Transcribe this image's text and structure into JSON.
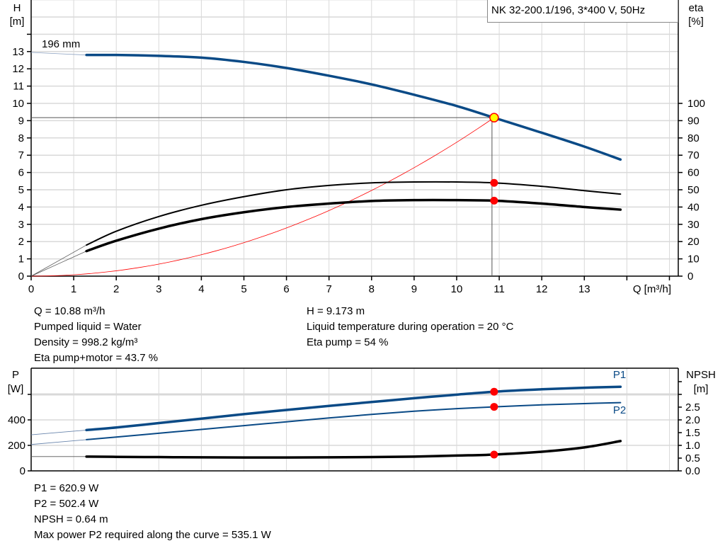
{
  "model_label": "NK 32-200.1/196, 3*400 V, 50Hz",
  "colors": {
    "head": "#0a4a86",
    "power": "#0a4a86",
    "efficiency": "#000000",
    "npsh": "#000000",
    "system_curve": "#ff0000",
    "operating_point": "#ffff00",
    "marker": "#ff0000",
    "grid": "#d9d9d9"
  },
  "chart_data": [
    {
      "type": "line",
      "title": "",
      "xlabel": "Q [m³/h]",
      "ylabel": "H\n[m]",
      "ylabel_lines": [
        "H",
        "[m]"
      ],
      "y2label_lines": [
        "eta",
        "[%]"
      ],
      "xlim": [
        0,
        15.2
      ],
      "ylim": [
        0,
        16
      ],
      "y2lim": [
        0,
        160
      ],
      "grid": true,
      "x_ticks": [
        "0",
        "1",
        "2",
        "3",
        "4",
        "5",
        "6",
        "7",
        "8",
        "9",
        "10",
        "11",
        "12",
        "13"
      ],
      "y_ticks": [
        "0",
        "1",
        "2",
        "3",
        "4",
        "5",
        "6",
        "7",
        "8",
        "9",
        "10",
        "11",
        "12",
        "13"
      ],
      "y2_ticks": [
        "0",
        "10",
        "20",
        "30",
        "40",
        "50",
        "60",
        "70",
        "80",
        "90",
        "100"
      ],
      "curve_label": "196 mm",
      "series": [
        {
          "key": "head",
          "axis": "left",
          "x": [
            1.3,
            2,
            3,
            4,
            5,
            6,
            7,
            8,
            9,
            10,
            10.88,
            12,
            13,
            13.85
          ],
          "y": [
            12.8,
            12.8,
            12.75,
            12.65,
            12.4,
            12.05,
            11.6,
            11.1,
            10.5,
            9.85,
            9.17,
            8.3,
            7.5,
            6.75
          ],
          "extension": {
            "x": [
              0,
              1.3
            ],
            "y": [
              12.95,
              12.8
            ]
          }
        },
        {
          "key": "eta_pump",
          "axis": "right",
          "x": [
            1.3,
            2,
            3,
            4,
            5,
            6,
            7,
            8,
            9,
            10,
            10.88,
            12,
            13,
            13.85
          ],
          "y": [
            18,
            26,
            34.5,
            41,
            46,
            50,
            52.5,
            54,
            54.5,
            54.5,
            54,
            52,
            49.5,
            47.5
          ],
          "extension": {
            "x": [
              0,
              1.3
            ],
            "y": [
              0,
              18
            ]
          }
        },
        {
          "key": "eta_pump_motor",
          "axis": "right",
          "x": [
            1.3,
            2,
            3,
            4,
            5,
            6,
            7,
            8,
            9,
            10,
            10.88,
            12,
            13,
            13.85
          ],
          "y": [
            14.5,
            20.5,
            27.5,
            33,
            37,
            40,
            42,
            43.5,
            44,
            44,
            43.7,
            42,
            40,
            38.5
          ],
          "extension": {
            "x": [
              0,
              1.3
            ],
            "y": [
              0,
              14.5
            ]
          }
        },
        {
          "key": "system_curve",
          "axis": "left",
          "formula": "H = 9.173*(Q/10.88)^2",
          "x_range": [
            0,
            10.88
          ]
        }
      ],
      "operating_point": {
        "Q": 10.88,
        "H": 9.173,
        "eta_pump": 54,
        "eta_pump_motor": 43.7
      }
    },
    {
      "type": "line",
      "title": "",
      "ylabel_lines": [
        "P",
        "[W]"
      ],
      "y2label_lines": [
        "NPSH",
        "[m]"
      ],
      "xlim": [
        0,
        15.2
      ],
      "ylim": [
        0,
        800
      ],
      "y2lim": [
        0,
        4.0
      ],
      "grid": true,
      "y_ticks": [
        "0",
        "200",
        "400"
      ],
      "y2_ticks": [
        "0.0",
        "0.5",
        "1.0",
        "1.5",
        "2.0",
        "2.5"
      ],
      "series": [
        {
          "key": "P1",
          "name": "P1",
          "axis": "left",
          "x": [
            1.3,
            2,
            3,
            4,
            5,
            6,
            7,
            8,
            9,
            10,
            10.88,
            12,
            13,
            13.85
          ],
          "y": [
            320,
            340,
            375,
            410,
            445,
            478,
            510,
            540,
            570,
            598,
            620.9,
            640,
            652,
            660
          ],
          "extension": {
            "x": [
              0,
              1.3
            ],
            "y": [
              283,
              320
            ]
          }
        },
        {
          "key": "P2",
          "name": "P2",
          "axis": "left",
          "x": [
            1.3,
            2,
            3,
            4,
            5,
            6,
            7,
            8,
            9,
            10,
            10.88,
            12,
            13,
            13.85
          ],
          "y": [
            245,
            265,
            295,
            325,
            355,
            385,
            415,
            443,
            468,
            488,
            502.4,
            518,
            528,
            535.1
          ],
          "extension": {
            "x": [
              0,
              1.3
            ],
            "y": [
              207,
              245
            ]
          }
        },
        {
          "key": "NPSH",
          "axis": "right",
          "x": [
            1.3,
            2,
            3,
            4,
            5,
            6,
            7,
            8,
            9,
            10,
            10.88,
            12,
            13,
            13.85
          ],
          "y": [
            0.56,
            0.55,
            0.54,
            0.53,
            0.525,
            0.525,
            0.53,
            0.54,
            0.56,
            0.6,
            0.64,
            0.75,
            0.92,
            1.17
          ],
          "extension": {
            "x": [
              0,
              1.3
            ],
            "y": [
              0.56,
              0.56
            ]
          }
        }
      ],
      "operating_point": {
        "Q": 10.88,
        "P1": 620.9,
        "P2": 502.4,
        "NPSH": 0.64
      }
    }
  ],
  "results_top": {
    "left": [
      "Q = 10.88 m³/h",
      "Pumped liquid = Water",
      "Density = 998.2 kg/m³",
      "Eta pump+motor = 43.7 %"
    ],
    "right": [
      "H = 9.173 m",
      "Liquid temperature during operation = 20 °C",
      "Eta pump = 54 %"
    ]
  },
  "results_bottom": [
    "P1 = 620.9 W",
    "P2 = 502.4 W",
    "NPSH = 0.64 m",
    "Max power P2 required along the curve = 535.1 W"
  ]
}
